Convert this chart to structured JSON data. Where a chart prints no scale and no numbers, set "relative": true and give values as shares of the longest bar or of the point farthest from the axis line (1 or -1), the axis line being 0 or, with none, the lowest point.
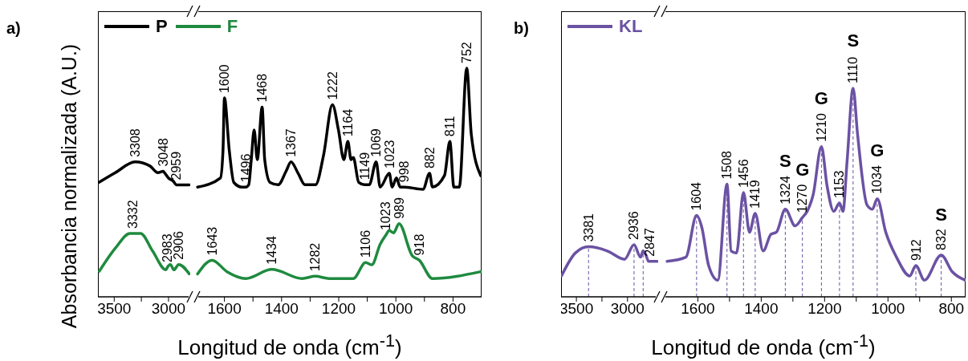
{
  "chart_data": [
    {
      "type": "line",
      "relative": true,
      "xlim": [
        3650,
        2800
      ],
      "xticks": [
        3500,
        {
          "value": 3250,
          "label": null
        },
        3000
      ],
      "tick_labels": "x",
      "ylabel": "Absorbancia normalizada (A.U.)",
      "annotations": [
        "a)",
        {
          "text": "3308",
          "x": 3308,
          "y": 1.0
        },
        {
          "text": "3048",
          "x": 3048,
          "y": 0.93
        },
        {
          "text": "2959",
          "x": 2927,
          "y": 0.83
        },
        {
          "text": "3332",
          "x": 3332,
          "y": 0.47
        },
        {
          "text": "2983",
          "x": 3010,
          "y": 0.22
        },
        {
          "text": "2906",
          "x": 2906,
          "y": 0.24
        }
      ],
      "series": [
        {
          "color": "#000000",
          "x": [
            3637,
            3490,
            3308,
            3171,
            3098,
            3048,
            3037,
            3000,
            2959,
            2927,
            2809
          ],
          "values": [
            0.85,
            0.92,
            1.0,
            0.97,
            0.92,
            0.93,
            0.92,
            0.88,
            0.86,
            0.83,
            0.83
          ]
        },
        {
          "color": "#1f8a3f",
          "x": [
            3637,
            3490,
            3355,
            3332,
            3257,
            3147,
            3024,
            3010,
            2983,
            2950,
            2906,
            2809
          ],
          "values": [
            0.19,
            0.36,
            0.47,
            0.47,
            0.47,
            0.34,
            0.2,
            0.22,
            0.24,
            0.2,
            0.24,
            0.17
          ]
        }
      ]
    },
    {
      "type": "line",
      "relative": true,
      "xlim": [
        1700,
        700
      ],
      "xticks": [
        1600,
        {
          "value": 1500,
          "label": null
        },
        1400,
        {
          "value": 1300,
          "label": null
        },
        1200,
        {
          "value": 1100,
          "label": null
        },
        1000,
        {
          "value": 900,
          "label": null
        },
        800
      ],
      "tick_labels": "x",
      "xlabel": "Longitud de onda (cm$^{-1}$)",
      "legend": "top left",
      "annotations": [
        {
          "text": "1600",
          "x": 1600,
          "y": 0.87
        },
        {
          "text": "1496",
          "x": 1525,
          "y": 0.48
        },
        {
          "text": "1468",
          "x": 1468,
          "y": 0.83
        },
        {
          "text": "1367",
          "x": 1367,
          "y": 0.59
        },
        {
          "text": "1222",
          "x": 1222,
          "y": 0.84
        },
        {
          "text": "1164",
          "x": 1168,
          "y": 0.68
        },
        {
          "text": "1149",
          "x": 1110,
          "y": 0.49
        },
        {
          "text": "1069",
          "x": 1069,
          "y": 0.59
        },
        {
          "text": "1023",
          "x": 1023,
          "y": 0.54
        },
        {
          "text": "998",
          "x": 970,
          "y": 0.48
        },
        {
          "text": "882",
          "x": 882,
          "y": 0.54
        },
        {
          "text": "811",
          "x": 811,
          "y": 0.68
        },
        {
          "text": "752",
          "x": 752,
          "y": 1.0
        },
        {
          "text": "1643",
          "x": 1643,
          "y": 0.16
        },
        {
          "text": "1434",
          "x": 1434,
          "y": 0.12
        },
        {
          "text": "1282",
          "x": 1282,
          "y": 0.09
        },
        {
          "text": "1106",
          "x": 1106,
          "y": 0.15
        },
        {
          "text": "1023",
          "x": 1035,
          "y": 0.27
        },
        {
          "text": "989",
          "x": 989,
          "y": 0.32
        },
        {
          "text": "918",
          "x": 918,
          "y": 0.16
        }
      ],
      "series": [
        {
          "name": "P",
          "color": "#000000",
          "x": [
            1694,
            1614,
            1605,
            1600,
            1583,
            1567,
            1539,
            1525,
            1515,
            1506,
            1496,
            1485,
            1468,
            1459,
            1440,
            1412,
            1384,
            1367,
            1342,
            1318,
            1281,
            1253,
            1222,
            1201,
            1182,
            1168,
            1157,
            1149,
            1130,
            1110,
            1093,
            1069,
            1055,
            1023,
            1013,
            998,
            985,
            970,
            905,
            882,
            872,
            830,
            811,
            797,
            778,
            752,
            736,
            703
          ],
          "values": [
            0.48,
            0.52,
            0.64,
            0.87,
            0.64,
            0.5,
            0.48,
            0.48,
            0.49,
            0.6,
            0.73,
            0.6,
            0.83,
            0.6,
            0.5,
            0.49,
            0.55,
            0.59,
            0.54,
            0.49,
            0.49,
            0.62,
            0.84,
            0.73,
            0.6,
            0.68,
            0.6,
            0.61,
            0.5,
            0.49,
            0.49,
            0.59,
            0.48,
            0.54,
            0.48,
            0.52,
            0.48,
            0.48,
            0.47,
            0.54,
            0.48,
            0.53,
            0.68,
            0.48,
            0.48,
            1.0,
            0.71,
            0.53
          ]
        },
        {
          "name": "F",
          "color": "#1f8a3f",
          "x": [
            1694,
            1643,
            1591,
            1525,
            1434,
            1328,
            1282,
            1234,
            1149,
            1106,
            1084,
            1055,
            1035,
            1023,
            1008,
            989,
            943,
            918,
            872,
            703
          ],
          "values": [
            0.1,
            0.16,
            0.11,
            0.08,
            0.12,
            0.08,
            0.09,
            0.08,
            0.08,
            0.15,
            0.14,
            0.23,
            0.27,
            0.29,
            0.28,
            0.32,
            0.18,
            0.16,
            0.08,
            0.11
          ]
        }
      ]
    },
    {
      "type": "line",
      "relative": true,
      "xlim": [
        3650,
        2700
      ],
      "xticks": [
        3500,
        {
          "value": 3250,
          "label": null
        },
        3000
      ],
      "tick_labels": "x",
      "annotations": [
        "b)",
        {
          "text": "3381",
          "x": 3381,
          "y": 0.96
        },
        {
          "text": "2936",
          "x": 2936,
          "y": 1.0
        },
        {
          "text": "2847",
          "x": 2780,
          "y": 0.68
        }
      ],
      "ref_lines": [
        {
          "axis": "x",
          "value": 3381,
          "color": "#6b52a3",
          "line_style": "dashed"
        },
        {
          "axis": "x",
          "value": 2936,
          "color": "#6b52a3",
          "line_style": "dashed"
        },
        {
          "axis": "x",
          "value": 2847,
          "color": "#6b52a3",
          "line_style": "dashed"
        }
      ],
      "series": [
        {
          "color": "#6b52a3",
          "x": [
            3646,
            3510,
            3381,
            3198,
            3029,
            2936,
            2873,
            2847,
            2820,
            2794,
            2780,
            2710
          ],
          "values": [
            0.4,
            0.84,
            0.96,
            0.88,
            0.72,
            1.0,
            0.76,
            0.88,
            0.8,
            0.68,
            0.68,
            0.68
          ]
        }
      ]
    },
    {
      "type": "line",
      "relative": true,
      "xlim": [
        1710,
        755
      ],
      "xticks": [
        1600,
        {
          "value": 1500,
          "label": null
        },
        1400,
        {
          "value": 1300,
          "label": null
        },
        1200,
        {
          "value": 1100,
          "label": null
        },
        1000,
        {
          "value": 900,
          "label": null
        },
        800
      ],
      "tick_labels": "x",
      "xlabel": "Longitud de onda (cm$^{-1}$)",
      "legend": "top left",
      "annotations": [
        {
          "text": "1604",
          "x": 1604,
          "y": 0.39
        },
        {
          "text": "1508",
          "x": 1508,
          "y": 0.54
        },
        {
          "text": "1456",
          "x": 1456,
          "y": 0.5
        },
        {
          "text": "1419",
          "x": 1419,
          "y": 0.4
        },
        {
          "text": "1324",
          "x": 1324,
          "y": 0.42
        },
        {
          "text": "1270",
          "x": 1270,
          "y": 0.38
        },
        {
          "text": "1210",
          "x": 1210,
          "y": 0.72
        },
        {
          "text": "1153",
          "x": 1153,
          "y": 0.45
        },
        {
          "text": "1110",
          "x": 1110,
          "y": 1.0
        },
        {
          "text": "1034",
          "x": 1034,
          "y": 0.47
        },
        {
          "text": "912",
          "x": 912,
          "y": 0.15
        },
        {
          "text": "832",
          "x": 832,
          "y": 0.2
        },
        {
          "text": "S",
          "x": 1324,
          "y": 0.42
        },
        {
          "text": "G",
          "x": 1270,
          "y": 0.38
        },
        {
          "text": "G",
          "x": 1210,
          "y": 0.72
        },
        {
          "text": "S",
          "x": 1110,
          "y": 1.0
        },
        {
          "text": "G",
          "x": 1034,
          "y": 0.47
        },
        {
          "text": "S",
          "x": 832,
          "y": 0.2
        }
      ],
      "ref_lines": [
        {
          "axis": "x",
          "value": 1604,
          "color": "#6b52a3",
          "line_style": "dashed"
        },
        {
          "axis": "x",
          "value": 1508,
          "color": "#6b52a3",
          "line_style": "dashed"
        },
        {
          "axis": "x",
          "value": 1456,
          "color": "#6b52a3",
          "line_style": "dashed"
        },
        {
          "axis": "x",
          "value": 1419,
          "color": "#6b52a3",
          "line_style": "dashed"
        },
        {
          "axis": "x",
          "value": 1324,
          "color": "#6b52a3",
          "line_style": "dashed"
        },
        {
          "axis": "x",
          "value": 1270,
          "color": "#6b52a3",
          "line_style": "dashed"
        },
        {
          "axis": "x",
          "value": 1210,
          "color": "#6b52a3",
          "line_style": "dashed"
        },
        {
          "axis": "x",
          "value": 1153,
          "color": "#6b52a3",
          "line_style": "dashed"
        },
        {
          "axis": "x",
          "value": 1110,
          "color": "#6b52a3",
          "line_style": "dashed"
        },
        {
          "axis": "x",
          "value": 1034,
          "color": "#6b52a3",
          "line_style": "dashed"
        },
        {
          "axis": "x",
          "value": 912,
          "color": "#6b52a3",
          "line_style": "dashed"
        },
        {
          "axis": "x",
          "value": 832,
          "color": "#6b52a3",
          "line_style": "dashed"
        }
      ],
      "series": [
        {
          "name": "KL",
          "color": "#6b52a3",
          "x": [
            1697,
            1638,
            1604,
            1587,
            1566,
            1537,
            1508,
            1495,
            1478,
            1456,
            1437,
            1419,
            1394,
            1369,
            1352,
            1324,
            1293,
            1270,
            1255,
            1236,
            1210,
            1192,
            1171,
            1153,
            1142,
            1129,
            1110,
            1096,
            1066,
            1049,
            1034,
            1007,
            973,
            931,
            912,
            885,
            832,
            797,
            757
          ],
          "values": [
            0.17,
            0.19,
            0.39,
            0.33,
            0.15,
            0.08,
            0.54,
            0.22,
            0.21,
            0.5,
            0.31,
            0.4,
            0.22,
            0.3,
            0.31,
            0.42,
            0.34,
            0.38,
            0.41,
            0.49,
            0.72,
            0.53,
            0.41,
            0.45,
            0.41,
            0.65,
            1.0,
            0.78,
            0.44,
            0.42,
            0.47,
            0.31,
            0.19,
            0.1,
            0.15,
            0.08,
            0.2,
            0.12,
            0.08
          ]
        }
      ]
    }
  ]
}
